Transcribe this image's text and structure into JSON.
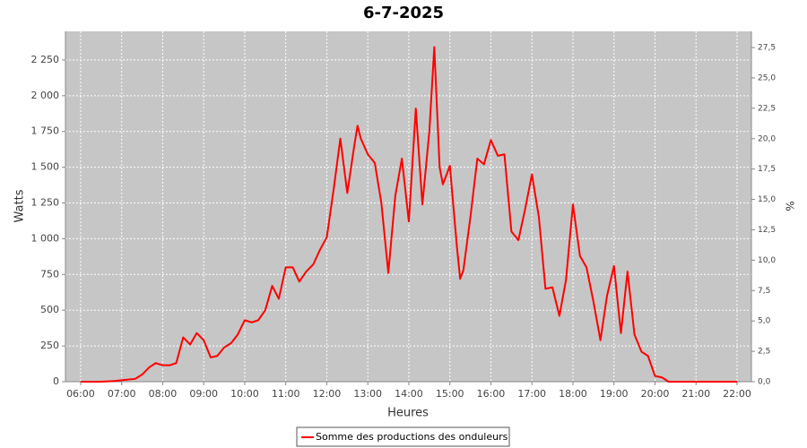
{
  "chart_data": {
    "type": "line",
    "title": "6-7-2025",
    "x_label": "Heures",
    "y_label": "Watts",
    "y2_label": "%",
    "x": [
      6,
      6.5,
      6.83,
      7,
      7.33,
      7.5,
      7.67,
      7.83,
      8,
      8.17,
      8.33,
      8.5,
      8.67,
      8.83,
      9,
      9.17,
      9.33,
      9.5,
      9.67,
      9.83,
      10,
      10.17,
      10.33,
      10.5,
      10.67,
      10.83,
      11,
      11.17,
      11.33,
      11.5,
      11.67,
      11.83,
      12,
      12.17,
      12.33,
      12.5,
      12.67,
      12.75,
      12.83,
      13,
      13.17,
      13.33,
      13.5,
      13.67,
      13.83,
      14,
      14.17,
      14.33,
      14.5,
      14.62,
      14.75,
      14.83,
      15,
      15.17,
      15.25,
      15.33,
      15.5,
      15.67,
      15.83,
      16,
      16.17,
      16.33,
      16.5,
      16.67,
      16.83,
      17,
      17.17,
      17.33,
      17.5,
      17.67,
      17.83,
      18,
      18.17,
      18.33,
      18.5,
      18.67,
      18.83,
      19,
      19.17,
      19.33,
      19.5,
      19.67,
      19.83,
      20,
      20.17,
      20.33,
      22
    ],
    "series": [
      {
        "name": "Somme des productions des onduleurs",
        "color": "#ff0000",
        "values": [
          0,
          0,
          5,
          10,
          20,
          50,
          100,
          130,
          115,
          115,
          130,
          310,
          260,
          340,
          290,
          170,
          180,
          240,
          270,
          330,
          430,
          415,
          430,
          500,
          670,
          580,
          800,
          800,
          700,
          770,
          820,
          920,
          1010,
          1350,
          1700,
          1320,
          1650,
          1790,
          1700,
          1590,
          1530,
          1250,
          760,
          1300,
          1560,
          1120,
          1910,
          1240,
          1750,
          2340,
          1500,
          1380,
          1510,
          950,
          720,
          780,
          1150,
          1560,
          1520,
          1690,
          1580,
          1590,
          1050,
          990,
          1200,
          1450,
          1150,
          650,
          660,
          460,
          710,
          1240,
          880,
          800,
          560,
          290,
          600,
          810,
          340,
          770,
          330,
          210,
          180,
          40,
          30,
          0,
          0
        ]
      }
    ],
    "xlim": [
      5.63,
      22.35
    ],
    "xticks": [
      {
        "value": 6,
        "label": "06:00"
      },
      {
        "value": 7,
        "label": "07:00"
      },
      {
        "value": 8,
        "label": "08:00"
      },
      {
        "value": 9,
        "label": "09:00"
      },
      {
        "value": 10,
        "label": "10:00"
      },
      {
        "value": 11,
        "label": "11:00"
      },
      {
        "value": 12,
        "label": "12:00"
      },
      {
        "value": 13,
        "label": "13:00"
      },
      {
        "value": 14,
        "label": "14:00"
      },
      {
        "value": 15,
        "label": "15:00"
      },
      {
        "value": 16,
        "label": "16:00"
      },
      {
        "value": 17,
        "label": "17:00"
      },
      {
        "value": 18,
        "label": "18:00"
      },
      {
        "value": 19,
        "label": "19:00"
      },
      {
        "value": 20,
        "label": "20:00"
      },
      {
        "value": 21,
        "label": "21:00"
      },
      {
        "value": 22,
        "label": "22:00"
      }
    ],
    "ylim": [
      0,
      2450
    ],
    "yticks": [
      0,
      250,
      500,
      750,
      {
        "value": 1000,
        "label": "1 000"
      },
      {
        "value": 1250,
        "label": "1 250"
      },
      {
        "value": 1500,
        "label": "1 500"
      },
      {
        "value": 1750,
        "label": "1 750"
      },
      {
        "value": 2000,
        "label": "2 000"
      },
      {
        "value": 2250,
        "label": "2 250"
      }
    ],
    "y2lim": [
      0,
      28.83
    ],
    "y2ticks": [
      {
        "value": 0,
        "label": "0,0"
      },
      {
        "value": 2.5,
        "label": "2,5"
      },
      {
        "value": 5,
        "label": "5,0"
      },
      {
        "value": 7.5,
        "label": "7,5"
      },
      {
        "value": 10,
        "label": "10,0"
      },
      {
        "value": 12.5,
        "label": "12,5"
      },
      {
        "value": 15,
        "label": "15,0"
      },
      {
        "value": 17.5,
        "label": "17,5"
      },
      {
        "value": 20,
        "label": "20,0"
      },
      {
        "value": 22.5,
        "label": "22,5"
      },
      {
        "value": 25,
        "label": "25,0"
      },
      {
        "value": 27.5,
        "label": "27,5"
      }
    ],
    "grid": true,
    "legend": "bottom"
  }
}
